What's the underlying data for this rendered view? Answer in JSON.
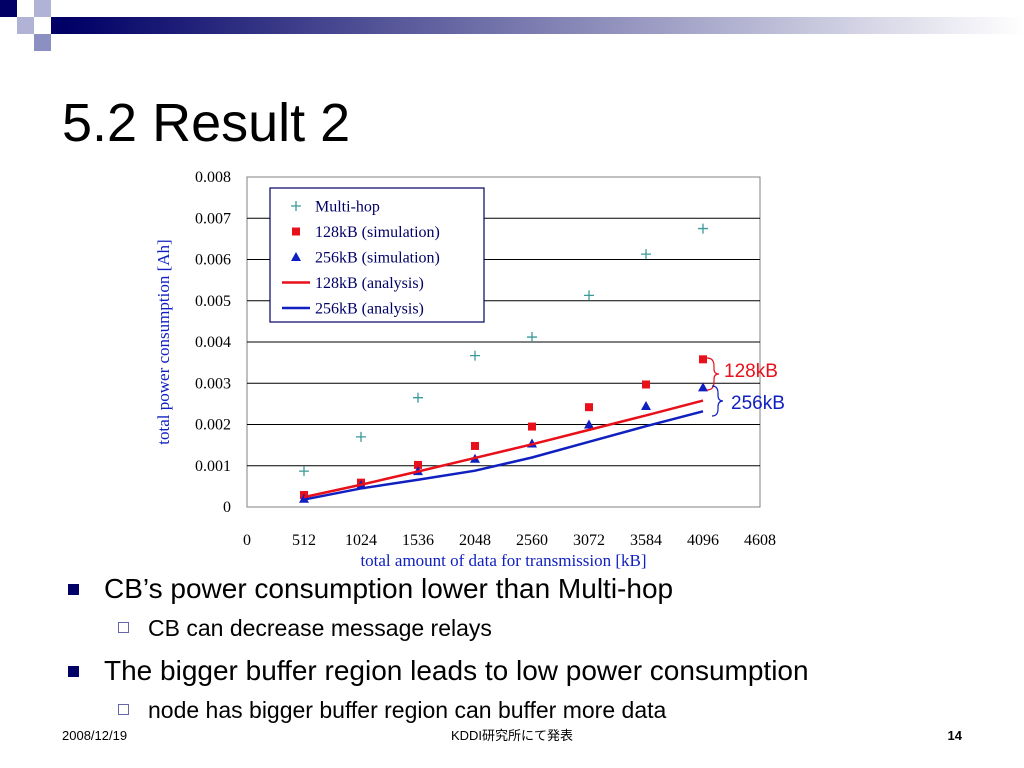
{
  "slide": {
    "title": "5.2 Result 2",
    "accent_color": "#000066",
    "bullets": [
      {
        "text": "CB’s power consumption lower than Multi-hop",
        "sub": "CB can decrease message relays"
      },
      {
        "text": "The bigger buffer region leads to low power consumption",
        "sub": "node has bigger buffer region can buffer more data"
      }
    ],
    "footer": {
      "date": "2008/12/19",
      "org": "KDDI研究所にて発表",
      "page": "14"
    }
  },
  "chart_data": {
    "type": "scatter",
    "xlabel": "total amount of data for transmission [kB]",
    "ylabel": "total power consumption [Ah]",
    "xlim": [
      0,
      4608
    ],
    "ylim": [
      0,
      0.008
    ],
    "x_ticks": [
      "0",
      "512",
      "1024",
      "1536",
      "2048",
      "2560",
      "3072",
      "3584",
      "4096",
      "4608"
    ],
    "y_ticks": [
      "0",
      "0.001",
      "0.002",
      "0.003",
      "0.004",
      "0.005",
      "0.006",
      "0.007",
      "0.008"
    ],
    "grid": "horizontal",
    "legend_position": "top-left",
    "series": [
      {
        "name": "Multi-hop",
        "kind": "plus",
        "color": "#3a9a9a",
        "x": [
          512,
          1024,
          1536,
          2048,
          2560,
          3072,
          3584,
          4096
        ],
        "y": [
          0.00087,
          0.0017,
          0.00265,
          0.00367,
          0.00412,
          0.00513,
          0.00613,
          0.00675
        ]
      },
      {
        "name": "128kB (simulation)",
        "kind": "square",
        "color": "#e8101a",
        "x": [
          512,
          1024,
          1536,
          2048,
          2560,
          3072,
          3584,
          4096
        ],
        "y": [
          0.00029,
          0.00059,
          0.00102,
          0.00148,
          0.00195,
          0.00242,
          0.00297,
          0.00358
        ]
      },
      {
        "name": "256kB (simulation)",
        "kind": "triangle",
        "color": "#1020c0",
        "x": [
          512,
          1024,
          1536,
          2048,
          2560,
          3072,
          3584,
          4096
        ],
        "y": [
          0.0002,
          0.00053,
          0.00087,
          0.00117,
          0.00154,
          0.002,
          0.00245,
          0.0029
        ]
      },
      {
        "name": "128kB (analysis)",
        "kind": "line",
        "color": "#e8101a",
        "x": [
          512,
          1024,
          1536,
          2048,
          2560,
          3072,
          3584,
          4096
        ],
        "y": [
          0.00024,
          0.00054,
          0.00086,
          0.00119,
          0.00152,
          0.00187,
          0.00222,
          0.00258
        ]
      },
      {
        "name": "256kB (analysis)",
        "kind": "line",
        "color": "#1020c0",
        "x": [
          512,
          1024,
          1536,
          2048,
          2560,
          3072,
          3584,
          4096
        ],
        "y": [
          0.00018,
          0.00045,
          0.00066,
          0.00088,
          0.0012,
          0.00158,
          0.00196,
          0.00232
        ]
      }
    ],
    "annotations": [
      {
        "text": "128kB",
        "color": "#e8101a"
      },
      {
        "text": "256kB",
        "color": "#1020c0"
      }
    ]
  }
}
